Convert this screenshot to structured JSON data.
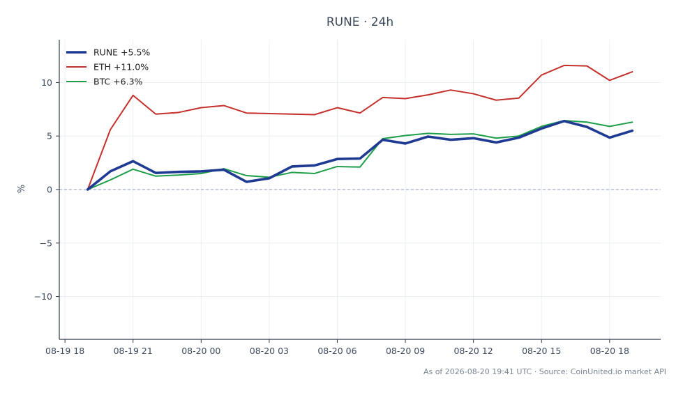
{
  "chart_data": {
    "type": "line",
    "title": "RUNE · 24h",
    "ylabel": "%",
    "xlabel": "",
    "x": [
      "08-19 19:00",
      "08-19 20:00",
      "08-19 21:00",
      "08-19 22:00",
      "08-19 23:00",
      "08-20 00:00",
      "08-20 01:00",
      "08-20 02:00",
      "08-20 03:00",
      "08-20 04:00",
      "08-20 05:00",
      "08-20 06:00",
      "08-20 07:00",
      "08-20 08:00",
      "08-20 09:00",
      "08-20 10:00",
      "08-20 11:00",
      "08-20 12:00",
      "08-20 13:00",
      "08-20 14:00",
      "08-20 15:00",
      "08-20 16:00",
      "08-20 17:00",
      "08-20 18:00",
      "08-20 19:00"
    ],
    "xlim": [
      "08-19 17:45",
      "08-20 20:15"
    ],
    "ylim": [
      -14,
      14
    ],
    "xticks": [
      "08-19 18",
      "08-19 21",
      "08-20 00",
      "08-20 03",
      "08-20 06",
      "08-20 09",
      "08-20 12",
      "08-20 15",
      "08-20 18"
    ],
    "yticks": [
      "−10",
      "−5",
      "0",
      "5",
      "10"
    ],
    "ytick_values": [
      -10,
      -5,
      0,
      5,
      10
    ],
    "grid": true,
    "zero_line": true,
    "legend_position": "top-left",
    "series": [
      {
        "name": "RUNE +5.5%",
        "color": "#1f3a93",
        "width": 3.6,
        "values": [
          0,
          1.7,
          2.65,
          1.55,
          1.65,
          1.7,
          1.85,
          0.72,
          1.05,
          2.15,
          2.25,
          2.85,
          2.9,
          4.65,
          4.3,
          4.95,
          4.65,
          4.8,
          4.4,
          4.85,
          5.7,
          6.4,
          5.85,
          4.85,
          5.5
        ]
      },
      {
        "name": "ETH +11.0%",
        "color": "#c4302b",
        "width": 2,
        "values": [
          0,
          5.6,
          8.8,
          7.05,
          7.2,
          7.65,
          7.85,
          7.15,
          7.1,
          7.05,
          7.0,
          7.65,
          7.15,
          8.6,
          8.5,
          8.85,
          9.3,
          8.95,
          8.35,
          8.55,
          10.7,
          11.6,
          11.55,
          10.2,
          11.0
        ]
      },
      {
        "name": "BTC +6.3%",
        "color": "#1f9e4a",
        "width": 2,
        "values": [
          0,
          0.9,
          1.9,
          1.25,
          1.35,
          1.5,
          1.95,
          1.3,
          1.15,
          1.6,
          1.5,
          2.15,
          2.1,
          4.75,
          5.05,
          5.25,
          5.15,
          5.2,
          4.8,
          5.0,
          5.9,
          6.45,
          6.3,
          5.9,
          6.3
        ]
      }
    ]
  },
  "footer": {
    "source": "As of 2026-08-20 19:41 UTC · Source: CoinUnited.io market API"
  },
  "colors": {
    "axis": "#2f3b4a",
    "grid": "#eceff2",
    "zero_line": "#8a9bb0",
    "text": "#3d4a5c"
  }
}
